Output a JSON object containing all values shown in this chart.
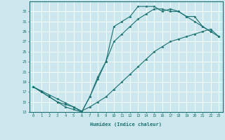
{
  "xlabel": "Humidex (Indice chaleur)",
  "bg_color": "#cce8ee",
  "grid_color": "#ffffff",
  "line_color": "#1a7070",
  "line1_x": [
    0,
    1,
    2,
    3,
    4,
    5,
    6,
    7,
    8,
    9,
    10,
    11,
    12,
    13,
    14,
    15,
    16,
    17,
    18,
    19,
    20,
    21,
    22
  ],
  "line1_y": [
    18,
    17,
    16,
    15,
    14,
    13.5,
    13,
    16,
    20,
    23,
    30,
    31,
    32,
    34,
    34,
    34,
    33,
    33.5,
    33,
    32,
    32,
    30,
    29
  ],
  "line2_x": [
    0,
    1,
    2,
    3,
    4,
    5,
    6,
    7,
    8,
    9,
    10,
    11,
    12,
    13,
    14,
    15,
    16,
    17,
    18,
    19,
    20,
    21,
    22,
    23
  ],
  "line2_y": [
    18,
    17.2,
    16.4,
    15.6,
    14.8,
    14,
    13.2,
    14,
    15,
    16,
    17.5,
    19,
    20.5,
    22,
    23.5,
    25,
    26,
    27,
    27.5,
    28,
    28.5,
    29,
    29.5,
    28
  ],
  "line3_x": [
    0,
    1,
    2,
    3,
    4,
    5,
    6,
    7,
    8,
    9,
    10,
    11,
    12,
    13,
    14,
    15,
    16,
    17,
    18,
    19,
    20,
    21,
    22,
    23
  ],
  "line3_y": [
    18,
    17,
    16,
    15,
    14.5,
    14,
    13,
    16,
    19.5,
    23,
    27,
    28.5,
    30,
    31.5,
    32.5,
    33.5,
    33.5,
    33,
    33,
    32,
    31,
    30,
    29,
    28
  ],
  "xlim": [
    -0.5,
    23.5
  ],
  "ylim": [
    13,
    35
  ],
  "yticks": [
    13,
    15,
    17,
    19,
    21,
    23,
    25,
    27,
    29,
    31,
    33
  ],
  "xticks": [
    0,
    1,
    2,
    3,
    4,
    5,
    6,
    7,
    8,
    9,
    10,
    11,
    12,
    13,
    14,
    15,
    16,
    17,
    18,
    19,
    20,
    21,
    22,
    23
  ]
}
